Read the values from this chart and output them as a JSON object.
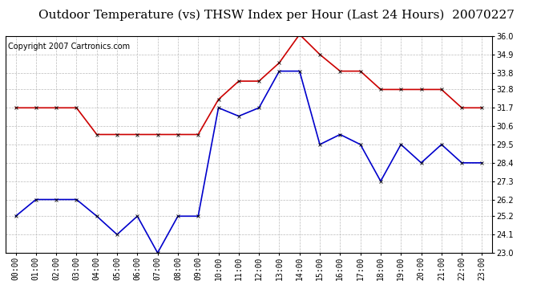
{
  "title": "Outdoor Temperature (vs) THSW Index per Hour (Last 24 Hours)  20070227",
  "copyright": "Copyright 2007 Cartronics.com",
  "hours": [
    "00:00",
    "01:00",
    "02:00",
    "03:00",
    "04:00",
    "05:00",
    "06:00",
    "07:00",
    "08:00",
    "09:00",
    "10:00",
    "11:00",
    "12:00",
    "13:00",
    "14:00",
    "15:00",
    "16:00",
    "17:00",
    "18:00",
    "19:00",
    "20:00",
    "21:00",
    "22:00",
    "23:00"
  ],
  "red_data": [
    31.7,
    31.7,
    31.7,
    31.7,
    30.1,
    30.1,
    30.1,
    30.1,
    30.1,
    30.1,
    32.2,
    33.3,
    33.3,
    34.4,
    36.1,
    34.9,
    33.9,
    33.9,
    32.8,
    32.8,
    32.8,
    32.8,
    31.7,
    31.7
  ],
  "blue_data": [
    25.2,
    26.2,
    26.2,
    26.2,
    25.2,
    24.1,
    25.2,
    23.0,
    25.2,
    25.2,
    31.7,
    31.2,
    31.7,
    33.9,
    33.9,
    29.5,
    30.1,
    29.5,
    27.3,
    29.5,
    28.4,
    29.5,
    28.4,
    28.4
  ],
  "red_color": "#cc0000",
  "blue_color": "#0000cc",
  "bg_color": "#ffffff",
  "plot_bg_color": "#ffffff",
  "grid_color": "#bbbbbb",
  "title_color": "#000000",
  "copyright_color": "#000000",
  "ymin": 23.0,
  "ymax": 36.0,
  "yticks": [
    23.0,
    24.1,
    25.2,
    26.2,
    27.3,
    28.4,
    29.5,
    30.6,
    31.7,
    32.8,
    33.8,
    34.9,
    36.0
  ],
  "title_fontsize": 11,
  "copyright_fontsize": 7,
  "tick_fontsize": 7,
  "marker": "x",
  "marker_size": 3,
  "linewidth": 1.2
}
